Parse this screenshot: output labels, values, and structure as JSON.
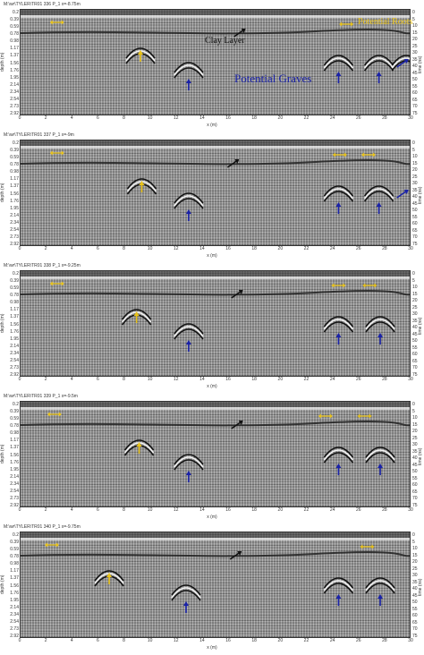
{
  "axis": {
    "xlabel": "x (m)",
    "ylabel_left": "depth (m)",
    "ylabel_right": "time (ns)",
    "x_ticks": [
      "0",
      "2",
      "4",
      "6",
      "8",
      "10",
      "12",
      "14",
      "16",
      "18",
      "20",
      "22",
      "24",
      "26",
      "28",
      "30"
    ],
    "depth_ticks": [
      "0.2",
      "0.39",
      "0.59",
      "0.78",
      "0.98",
      "1.17",
      "1.37",
      "1.56",
      "1.76",
      "1.95",
      "2.14",
      "2.34",
      "2.54",
      "2.73",
      "2.92"
    ],
    "time_ticks": [
      "0",
      "5",
      "10",
      "15",
      "20",
      "25",
      "30",
      "35",
      "40",
      "45",
      "50",
      "55",
      "60",
      "65",
      "70",
      "75"
    ]
  },
  "colors": {
    "yellow_arrow": "#e8c21a",
    "blue_arrow": "#1a22a8",
    "black_arrow": "#111111",
    "annotation_yellow": "#e8c21a",
    "annotation_blue": "#1a22a8",
    "annotation_black": "#111111"
  },
  "annotations": {
    "clay_layer": "Clay Layer",
    "potential_roots": "Potential Roots",
    "potential_graves": "Potential Graves"
  },
  "panels": [
    {
      "header": "M:\\wr\\TYLER\\TR01   336 P_1   x=-8.75m",
      "yellow_lr": [
        2.8,
        25.0
      ],
      "yellow_up": [
        9.2
      ],
      "blue_up": [
        12.9,
        24.4,
        27.5,
        29.5
      ],
      "black_clay": 17.0,
      "hyperbolas": [
        9.2,
        12.9,
        24.4,
        27.5,
        29.6
      ]
    },
    {
      "header": "M:\\wr\\TYLER\\TR01   337 P_1   x=-9m",
      "yellow_lr": [
        2.8,
        24.5,
        26.7
      ],
      "yellow_up": [
        9.3
      ],
      "blue_up": [
        12.9,
        24.4,
        27.5,
        29.5
      ],
      "black_clay": 16.5,
      "hyperbolas": [
        9.3,
        12.9,
        24.4,
        27.5
      ]
    },
    {
      "header": "M:\\wr\\TYLER\\TR01   338 P_1   x=-9.25m",
      "yellow_lr": [
        2.8,
        24.4,
        26.8
      ],
      "yellow_up": [
        8.9
      ],
      "blue_up": [
        12.9,
        24.4,
        27.6
      ],
      "black_clay": 16.8,
      "hyperbolas": [
        8.9,
        12.9,
        24.4,
        27.6
      ]
    },
    {
      "header": "M:\\wr\\TYLER\\TR01   339 P_1   x=-9.5m",
      "yellow_lr": [
        2.6,
        23.4,
        26.4
      ],
      "yellow_up": [
        9.1
      ],
      "blue_up": [
        12.9,
        24.4,
        27.6
      ],
      "black_clay": 16.8,
      "hyperbolas": [
        9.1,
        12.9,
        24.4,
        27.6
      ]
    },
    {
      "header": "M:\\wr\\TYLER\\TR01   340 P_1   x=-9.75m",
      "yellow_lr": [
        2.4,
        26.6
      ],
      "yellow_up": [
        6.8
      ],
      "blue_up": [
        12.7,
        24.4,
        27.6
      ],
      "black_clay": 16.7,
      "hyperbolas": [
        6.8,
        12.7,
        24.4,
        27.6
      ]
    }
  ]
}
